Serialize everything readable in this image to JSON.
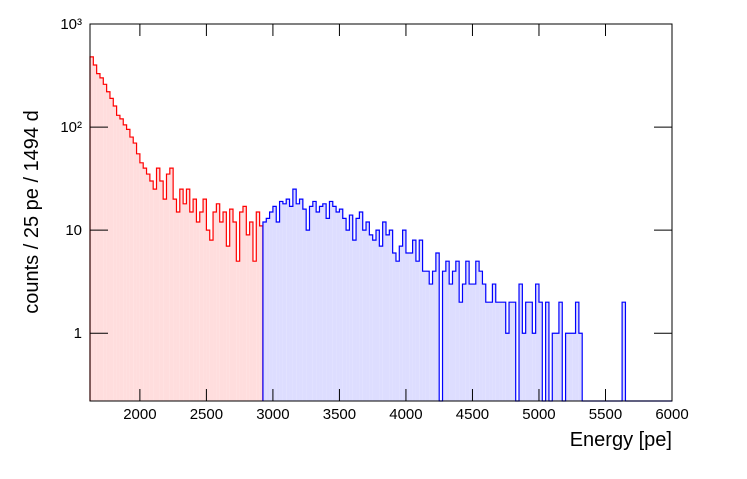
{
  "chart_data": {
    "type": "histogram",
    "x_label": "Energy [pe]",
    "y_label": "counts / 25 pe / 1494 d",
    "log_y": true,
    "xlim": [
      1625,
      6000
    ],
    "xticks": [
      2000,
      2500,
      3000,
      3500,
      4000,
      4500,
      5000,
      5500,
      6000
    ],
    "ylim": [
      0.22,
      1000
    ],
    "yticks": [
      1,
      10,
      {
        "value": 100,
        "label": "10²"
      },
      {
        "value": 1000,
        "label": "10³"
      }
    ],
    "series": [
      {
        "color": "#ff0000",
        "fill": "#ffdddd",
        "bins": [
          1625,
          1650,
          1675,
          1700,
          1725,
          1750,
          1775,
          1800,
          1825,
          1850,
          1875,
          1900,
          1925,
          1950,
          1975,
          2000,
          2025,
          2050,
          2075,
          2100,
          2125,
          2150,
          2175,
          2200,
          2225,
          2250,
          2275,
          2300,
          2325,
          2350,
          2375,
          2400,
          2425,
          2450,
          2475,
          2500,
          2525,
          2550,
          2575,
          2600,
          2625,
          2650,
          2675,
          2700,
          2725,
          2750,
          2775,
          2800,
          2825,
          2850,
          2875,
          2900,
          2925
        ],
        "values": [
          480,
          400,
          330,
          300,
          260,
          220,
          190,
          160,
          130,
          120,
          105,
          95,
          80,
          70,
          55,
          45,
          40,
          35,
          30,
          25,
          40,
          30,
          20,
          35,
          40,
          20,
          15,
          25,
          18,
          25,
          15,
          20,
          12,
          15,
          20,
          10,
          8,
          15,
          18,
          12,
          15,
          7,
          16,
          12,
          5,
          15,
          17,
          9,
          12,
          5,
          15,
          11
        ]
      },
      {
        "color": "#0000ff",
        "fill": "#ddddff",
        "bins": [
          2925,
          2950,
          2975,
          3000,
          3025,
          3050,
          3075,
          3100,
          3125,
          3150,
          3175,
          3200,
          3225,
          3250,
          3275,
          3300,
          3325,
          3350,
          3375,
          3400,
          3425,
          3450,
          3475,
          3500,
          3525,
          3550,
          3575,
          3600,
          3625,
          3650,
          3675,
          3700,
          3725,
          3750,
          3775,
          3800,
          3825,
          3850,
          3875,
          3900,
          3925,
          3950,
          3975,
          4000,
          4025,
          4050,
          4075,
          4100,
          4125,
          4150,
          4175,
          4200,
          4225,
          4250,
          4275,
          4300,
          4325,
          4350,
          4375,
          4400,
          4425,
          4450,
          4475,
          4500,
          4525,
          4550,
          4575,
          4600,
          4625,
          4650,
          4675,
          4700,
          4725,
          4750,
          4775,
          4800,
          4825,
          4850,
          4875,
          4900,
          4925,
          4950,
          4975,
          5000,
          5025,
          5050,
          5075,
          5100,
          5125,
          5150,
          5175,
          5200,
          5225,
          5250,
          5275,
          5300,
          5325,
          5350,
          5375,
          5400,
          5425,
          5450,
          5475,
          5500,
          5525,
          5550,
          5575,
          5600,
          5625,
          5650,
          5675,
          5700,
          5725,
          5750,
          5775,
          5800,
          5825,
          5850,
          5875,
          5900,
          5925,
          5950,
          5975,
          6000
        ],
        "values": [
          12,
          13,
          15,
          17,
          12,
          19,
          18,
          20,
          17,
          25,
          18,
          20,
          16,
          10,
          17,
          19,
          15,
          17,
          18,
          13,
          19,
          17,
          15,
          16,
          13,
          10,
          14,
          8,
          13,
          15,
          10,
          12,
          9,
          8,
          10,
          7,
          12,
          9,
          10,
          6,
          5,
          7,
          10,
          6,
          6,
          8,
          5,
          8,
          4,
          4,
          3,
          4,
          6,
          0,
          4,
          5,
          3,
          4,
          5,
          2,
          3,
          5,
          3,
          3,
          5,
          4,
          3,
          2,
          2,
          3,
          2,
          2,
          2,
          1,
          2,
          2,
          0,
          3,
          1,
          2,
          2,
          1,
          3,
          2,
          0,
          2,
          0,
          1,
          1,
          2,
          0,
          1,
          1,
          1,
          2,
          1,
          0,
          0,
          0,
          0,
          0,
          0,
          0,
          0,
          0,
          0,
          0,
          0,
          2,
          0,
          0,
          0,
          0,
          0,
          0,
          0,
          0,
          0,
          0,
          0,
          0,
          0,
          0
        ]
      }
    ]
  }
}
